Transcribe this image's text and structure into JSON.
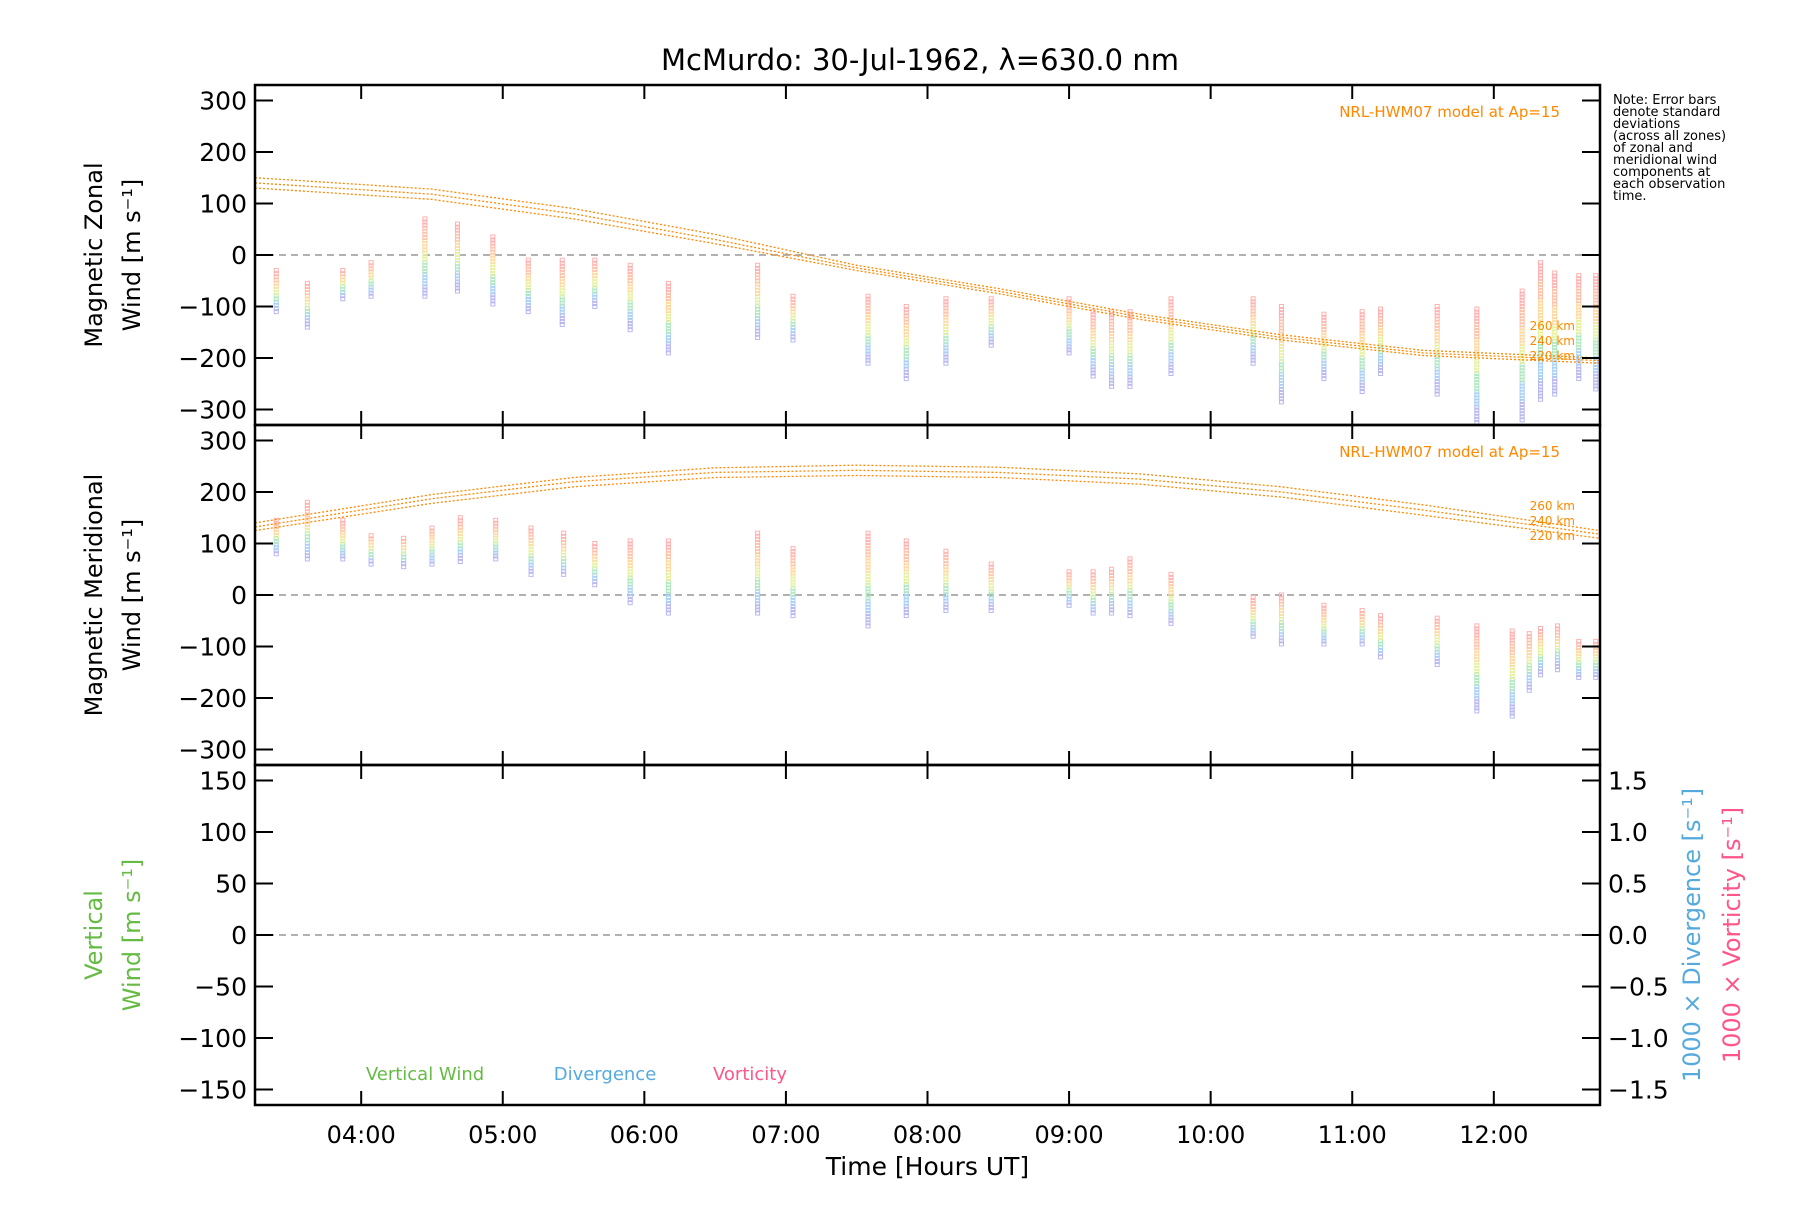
{
  "title": "McMurdo: 30-Jul-1962, λ=630.0 nm",
  "note_lines": [
    "Note: Error bars",
    "denote standard",
    "deviations",
    "(across all zones)",
    "of zonal and",
    "meridional wind",
    "components at",
    "each observation",
    "time."
  ],
  "colors": {
    "model": "#ff8800",
    "vertical": "#66bb44",
    "divergence": "#55aadd",
    "vorticity": "#ff5588",
    "zero_line": "#999999"
  },
  "chart_data": [
    {
      "type": "scatter",
      "panel": "zonal",
      "ylabel_lines": [
        "Magnetic Zonal",
        "Wind [m s⁻¹]"
      ],
      "xlabel": "Time [Hours UT]",
      "xlim": [
        3.25,
        12.75
      ],
      "ylim": [
        -330,
        330
      ],
      "yticks": [
        300,
        200,
        100,
        0,
        -100,
        -200,
        -300
      ],
      "yticklabels": [
        "300",
        "200",
        "100",
        "0",
        "−100",
        "−200",
        "−300"
      ],
      "model_label": "NRL-HWM07 model at Ap=15",
      "model_altitudes": [
        "260 km",
        "240 km",
        "220 km"
      ],
      "model_series": [
        {
          "name": "260 km",
          "x": [
            3.25,
            4.5,
            5.5,
            6.5,
            7.5,
            8.5,
            9.5,
            10.5,
            11.5,
            12.75
          ],
          "y": [
            150,
            128,
            90,
            40,
            -20,
            -65,
            -115,
            -155,
            -185,
            -200
          ]
        },
        {
          "name": "240 km",
          "x": [
            3.25,
            4.5,
            5.5,
            6.5,
            7.5,
            8.5,
            9.5,
            10.5,
            11.5,
            12.75
          ],
          "y": [
            140,
            118,
            80,
            30,
            -25,
            -70,
            -120,
            -160,
            -190,
            -205
          ]
        },
        {
          "name": "220 km",
          "x": [
            3.25,
            4.5,
            5.5,
            6.5,
            7.5,
            8.5,
            9.5,
            10.5,
            11.5,
            12.75
          ],
          "y": [
            130,
            108,
            70,
            22,
            -30,
            -75,
            -125,
            -165,
            -195,
            -210
          ]
        }
      ],
      "observations": {
        "times": [
          3.4,
          3.62,
          3.87,
          4.07,
          4.45,
          4.68,
          4.93,
          5.18,
          5.42,
          5.65,
          5.9,
          6.17,
          6.8,
          7.05,
          7.58,
          7.85,
          8.13,
          8.45,
          9.0,
          9.17,
          9.3,
          9.43,
          9.72,
          10.3,
          10.5,
          10.8,
          11.07,
          11.2,
          11.6,
          11.88,
          12.2,
          12.33,
          12.43,
          12.6,
          12.72
        ],
        "low": [
          -110,
          -140,
          -85,
          -80,
          -80,
          -70,
          -95,
          -110,
          -135,
          -100,
          -145,
          -190,
          -160,
          -165,
          -210,
          -240,
          -210,
          -175,
          -190,
          -235,
          -255,
          -255,
          -230,
          -210,
          -285,
          -240,
          -265,
          -230,
          -270,
          -325,
          -320,
          -280,
          -270,
          -240,
          -260
        ],
        "high": [
          -30,
          -55,
          -30,
          -15,
          70,
          60,
          35,
          -10,
          -10,
          -10,
          -20,
          -55,
          -20,
          -80,
          -80,
          -100,
          -85,
          -85,
          -85,
          -110,
          -110,
          -110,
          -85,
          -85,
          -100,
          -115,
          -110,
          -105,
          -100,
          -105,
          -70,
          -15,
          -35,
          -40,
          -40
        ]
      }
    },
    {
      "type": "scatter",
      "panel": "meridional",
      "ylabel_lines": [
        "Magnetic Meridional",
        "Wind [m s⁻¹]"
      ],
      "xlim": [
        3.25,
        12.75
      ],
      "ylim": [
        -330,
        330
      ],
      "yticks": [
        300,
        200,
        100,
        0,
        -100,
        -200,
        -300
      ],
      "yticklabels": [
        "300",
        "200",
        "100",
        "0",
        "−100",
        "−200",
        "−300"
      ],
      "model_label": "NRL-HWM07 model at Ap=15",
      "model_altitudes": [
        "260 km",
        "240 km",
        "220 km"
      ],
      "model_series": [
        {
          "name": "260 km",
          "x": [
            3.25,
            4.5,
            5.5,
            6.5,
            7.5,
            8.5,
            9.5,
            10.5,
            11.5,
            12.75
          ],
          "y": [
            140,
            195,
            228,
            247,
            252,
            248,
            235,
            210,
            175,
            125
          ]
        },
        {
          "name": "240 km",
          "x": [
            3.25,
            4.5,
            5.5,
            6.5,
            7.5,
            8.5,
            9.5,
            10.5,
            11.5,
            12.75
          ],
          "y": [
            132,
            187,
            220,
            238,
            242,
            238,
            225,
            200,
            165,
            118
          ]
        },
        {
          "name": "220 km",
          "x": [
            3.25,
            4.5,
            5.5,
            6.5,
            7.5,
            8.5,
            9.5,
            10.5,
            11.5,
            12.75
          ],
          "y": [
            125,
            178,
            210,
            228,
            232,
            228,
            215,
            190,
            155,
            110
          ]
        }
      ],
      "observations": {
        "times": [
          3.4,
          3.62,
          3.87,
          4.07,
          4.3,
          4.5,
          4.7,
          4.95,
          5.2,
          5.43,
          5.65,
          5.9,
          6.17,
          6.8,
          7.05,
          7.58,
          7.85,
          8.13,
          8.45,
          9.0,
          9.17,
          9.3,
          9.43,
          9.72,
          10.3,
          10.5,
          10.8,
          11.07,
          11.2,
          11.6,
          11.88,
          12.13,
          12.25,
          12.33,
          12.45,
          12.6,
          12.72
        ],
        "low": [
          80,
          70,
          70,
          60,
          55,
          60,
          65,
          70,
          40,
          40,
          20,
          -15,
          -35,
          -35,
          -40,
          -60,
          -40,
          -30,
          -30,
          -20,
          -35,
          -35,
          -40,
          -55,
          -80,
          -95,
          -95,
          -95,
          -120,
          -135,
          -225,
          -235,
          -185,
          -155,
          -145,
          -160,
          -160
        ],
        "high": [
          145,
          180,
          145,
          115,
          110,
          130,
          150,
          145,
          130,
          120,
          100,
          105,
          105,
          120,
          90,
          120,
          105,
          85,
          60,
          45,
          45,
          50,
          70,
          40,
          -5,
          0,
          -20,
          -30,
          -40,
          -45,
          -60,
          -70,
          -75,
          -65,
          -60,
          -90,
          -90
        ]
      }
    },
    {
      "type": "line",
      "panel": "vertical",
      "ylabel_lines": [
        "Vertical",
        "Wind [m s⁻¹]"
      ],
      "y2label_divergence": "1000 × Divergence [s⁻¹]",
      "y2label_vorticity": "1000 × Vorticity [s⁻¹]",
      "xlabel": "Time [Hours UT]",
      "xlim": [
        3.25,
        12.75
      ],
      "ylim": [
        -165,
        165
      ],
      "yticks": [
        150,
        100,
        50,
        0,
        -50,
        -100,
        -150
      ],
      "yticklabels": [
        "150",
        "100",
        "50",
        "0",
        "−50",
        "−100",
        "−150"
      ],
      "y2lim": [
        -1.65,
        1.65
      ],
      "y2ticks": [
        1.5,
        1.0,
        0.5,
        0.0,
        -0.5,
        -1.0,
        -1.5
      ],
      "y2ticklabels": [
        "1.5",
        "1.0",
        "0.5",
        "0.0",
        "−0.5",
        "−1.0",
        "−1.5"
      ],
      "xticks": [
        4,
        5,
        6,
        7,
        8,
        9,
        10,
        11,
        12
      ],
      "xticklabels": [
        "04:00",
        "05:00",
        "06:00",
        "07:00",
        "08:00",
        "09:00",
        "10:00",
        "11:00",
        "12:00"
      ],
      "legend": [
        {
          "name": "Vertical Wind"
        },
        {
          "name": "Divergence"
        },
        {
          "name": "Vorticity"
        }
      ]
    }
  ]
}
